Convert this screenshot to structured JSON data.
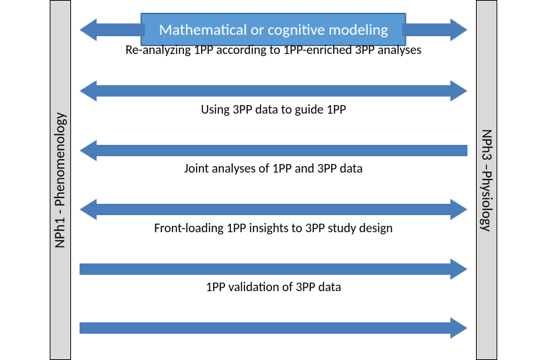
{
  "colors": {
    "arrow": "#4a7ebb",
    "panel_bg": "#d9d9d9",
    "panel_border": "#000000",
    "title_fill": "#5b9bd5",
    "title_border": "#41719c",
    "title_text": "#ffffff",
    "body_text": "#000000"
  },
  "left_panel": {
    "label": "NPh1 - Phenomenology"
  },
  "right_panel": {
    "label": "NPh3 –Physiology"
  },
  "title_row": {
    "text": "Mathematical or cognitive modeling",
    "left_arrow": true,
    "right_arrow": true
  },
  "arrows": [
    {
      "text": "Re-analyzing 1PP according to 1PP-enriched 3PP analyses",
      "left": true,
      "right": true
    },
    {
      "text": "Using 3PP data to guide 1PP",
      "left": true,
      "right": false
    },
    {
      "text": "Joint analyses of 1PP and 3PP data",
      "left": true,
      "right": true
    },
    {
      "text": "Front-loading 1PP insights to 3PP study design",
      "left": false,
      "right": true
    },
    {
      "text": "1PP validation of 3PP data",
      "left": false,
      "right": true
    }
  ]
}
